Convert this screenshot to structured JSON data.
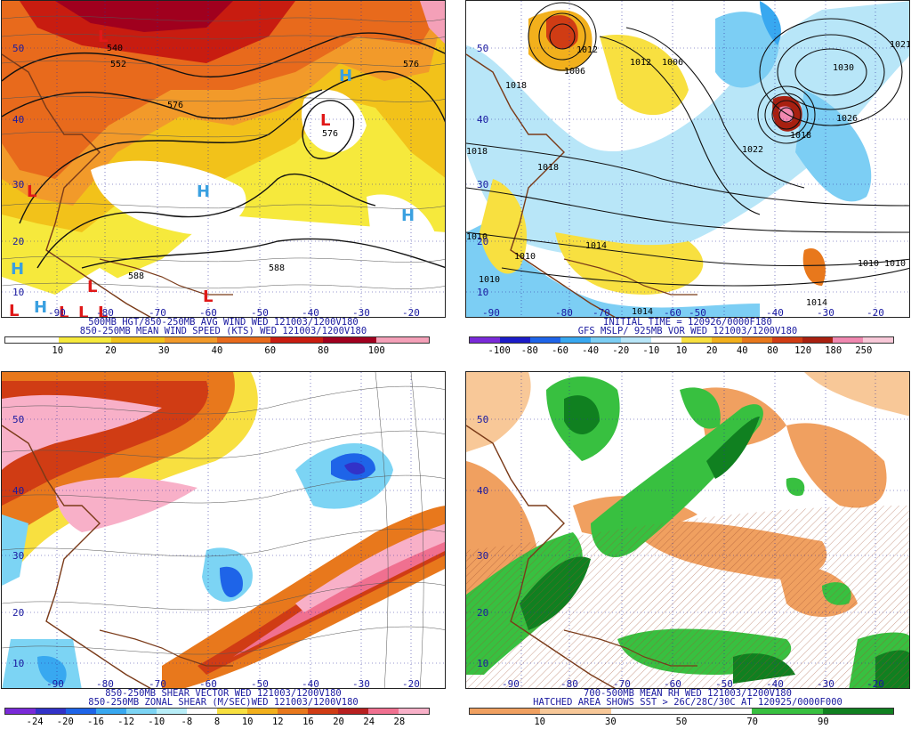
{
  "panels": {
    "p1": {
      "title1": "500MB HGT/850-250MB AVG WIND WED 121003/1200V180",
      "title2": "850-250MB MEAN WIND SPEED (KTS) WED 121003/1200V180",
      "ticks": [
        "10",
        "20",
        "30",
        "40",
        "60",
        "80",
        "100"
      ],
      "colors": [
        "#ffffff",
        "#f6e93c",
        "#f2c21a",
        "#f29a2a",
        "#e86a1c",
        "#c81c10",
        "#a0001e",
        "#f4a0b8"
      ],
      "lat_labels": [
        "50",
        "40",
        "30",
        "20",
        "10"
      ],
      "lon_labels": [
        "-90",
        "-80",
        "-70",
        "-60",
        "-50",
        "-40",
        "-30",
        "-20"
      ],
      "contour_labels": [
        "540",
        "552",
        "576",
        "576",
        "576",
        "588",
        "588"
      ],
      "highs": [
        "H",
        "H",
        "H",
        "H",
        "H"
      ],
      "lows": [
        "L",
        "L",
        "L",
        "L",
        "L",
        "L",
        "L",
        "L",
        "L"
      ]
    },
    "p2": {
      "title1": "INITIAL TIME = 120926/0000F180",
      "title2": "GFS MSLP/ 925MB VOR WED 121003/1200V180",
      "ticks": [
        "-100",
        "-80",
        "-60",
        "-40",
        "-20",
        "-10",
        "10",
        "20",
        "40",
        "80",
        "120",
        "180",
        "250"
      ],
      "colors": [
        "#7a2ad8",
        "#1c1cc8",
        "#1e64e8",
        "#38a8f0",
        "#7ccef4",
        "#b8e6f8",
        "#ffffff",
        "#f8e040",
        "#f2b01c",
        "#e8781c",
        "#d03c14",
        "#a82010",
        "#f088b0",
        "#f8c8d8"
      ],
      "lat_labels": [
        "50",
        "40",
        "30",
        "20",
        "10"
      ],
      "lon_labels": [
        "-90",
        "-80",
        "-70",
        "-60",
        "-50",
        "-40",
        "-30",
        "-20"
      ],
      "isobar_labels": [
        "1012",
        "1006",
        "1012",
        "1006",
        "1018",
        "1030",
        "1026",
        "1022",
        "1018",
        "1018",
        "1018",
        "1010",
        "1010",
        "1010",
        "1014",
        "1014",
        "1014",
        "1010",
        "1010",
        "1021"
      ]
    },
    "p3": {
      "title1": "850-250MB SHEAR VECTOR WED 121003/1200V180",
      "title2": "850-250MB ZONAL SHEAR (M/SEC)WED 121003/1200V180",
      "ticks": [
        "-24",
        "-20",
        "-16",
        "-12",
        "-10",
        "-8",
        "8",
        "10",
        "12",
        "16",
        "20",
        "24",
        "28"
      ],
      "colors": [
        "#7a2ad8",
        "#3232c8",
        "#1e64e8",
        "#38a8f0",
        "#7cd4f4",
        "#b8eef8",
        "#ffffff",
        "#f8e040",
        "#f2b01c",
        "#e8781c",
        "#d03c14",
        "#b82020",
        "#f07090",
        "#f8b0c8"
      ],
      "lat_labels": [
        "50",
        "40",
        "30",
        "20",
        "10"
      ],
      "lon_labels": [
        "-90",
        "-80",
        "-70",
        "-60",
        "-50",
        "-40",
        "-30",
        "-20"
      ]
    },
    "p4": {
      "title1": "700-500MB MEAN RH WED 121003/1200V180",
      "title2": "HATCHED AREA SHOWS SST > 26C/28C/30C AT 120925/0000F000",
      "ticks": [
        "10",
        "30",
        "50",
        "70",
        "90"
      ],
      "colors": [
        "#f0a060",
        "#f8c898",
        "#ffffff",
        "#ffffff",
        "#38c040",
        "#108020"
      ],
      "lat_labels": [
        "50",
        "40",
        "30",
        "20",
        "10"
      ],
      "lon_labels": [
        "-90",
        "-80",
        "-70",
        "-60",
        "-50",
        "-40",
        "-30",
        "-20"
      ]
    }
  }
}
